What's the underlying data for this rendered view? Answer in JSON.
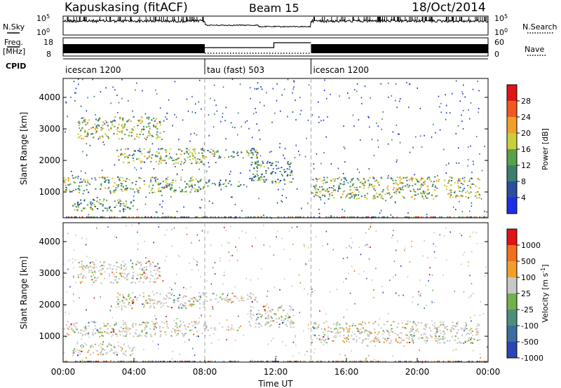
{
  "header": {
    "title": "Kapuskasing (fitACF)",
    "beam": "Beam 15",
    "date": "18/Oct/2014"
  },
  "summary_panels": {
    "nsky": {
      "label": "N.Sky",
      "tick_top": "10^5",
      "tick_bottom": "10^0"
    },
    "nsearch": {
      "label": "N.Search",
      "tick_top": "10^5",
      "tick_bottom": "10^0"
    },
    "freq": {
      "label_top": "Freq.",
      "label_bottom": "[MHz]",
      "tick_top": "18",
      "tick_bottom": "8"
    },
    "nave": {
      "label": "Nave",
      "tick_top": "60",
      "tick_bottom": "0"
    },
    "cpid": {
      "label": "CPID",
      "modes": [
        {
          "name": "icescan 1200",
          "start_h": 0,
          "end_h": 8
        },
        {
          "name": "tau (fast) 503",
          "start_h": 8,
          "end_h": 14
        },
        {
          "name": "icescan 1200",
          "start_h": 14,
          "end_h": 24
        }
      ]
    }
  },
  "chart_data": [
    {
      "type": "heatmap",
      "name": "Power",
      "ylabel": "Slant Range [km]",
      "xlabel": "",
      "xlim": [
        0,
        24
      ],
      "ylim": [
        180,
        4600
      ],
      "yticks": [
        "1000",
        "2000",
        "3000",
        "4000"
      ],
      "colorbar": {
        "label": "Power [dB]",
        "ticks": [
          "4",
          "8",
          "12",
          "16",
          "20",
          "24",
          "28"
        ],
        "colors": [
          "#1e2ee6",
          "#2a4fa0",
          "#3b7e6e",
          "#5aa04a",
          "#c8cf3a",
          "#f0a12a",
          "#f05a1e",
          "#e01414"
        ]
      },
      "scatter_regions": [
        {
          "t0": 0.0,
          "t1": 8.0,
          "r0": 1000,
          "r1": 1500,
          "level": 0.45
        },
        {
          "t0": 0.8,
          "t1": 5.5,
          "r0": 2700,
          "r1": 3400,
          "level": 0.5
        },
        {
          "t0": 3.0,
          "t1": 8.0,
          "r0": 1900,
          "r1": 2400,
          "level": 0.45
        },
        {
          "t0": 8.0,
          "t1": 11.0,
          "r0": 2100,
          "r1": 2400,
          "level": 0.4
        },
        {
          "t0": 8.0,
          "t1": 10.0,
          "r0": 1200,
          "r1": 1400,
          "level": 0.35
        },
        {
          "t0": 10.5,
          "t1": 13.0,
          "r0": 1300,
          "r1": 2000,
          "level": 0.35
        },
        {
          "t0": 14.0,
          "t1": 23.5,
          "r0": 800,
          "r1": 1500,
          "level": 0.5
        },
        {
          "t0": 0.5,
          "t1": 4.0,
          "r0": 400,
          "r1": 800,
          "level": 0.4
        }
      ]
    },
    {
      "type": "heatmap",
      "name": "Velocity",
      "ylabel": "Slant Range [km]",
      "xlabel": "Time UT",
      "xlim": [
        0,
        24
      ],
      "ylim": [
        180,
        4600
      ],
      "xticks": [
        "00:00",
        "04:00",
        "08:00",
        "12:00",
        "16:00",
        "20:00",
        "00:00"
      ],
      "yticks": [
        "1000",
        "2000",
        "3000",
        "4000"
      ],
      "colorbar": {
        "label": "Velocity [m s^-1]",
        "ticks": [
          "1000",
          "500",
          "100",
          "25",
          "-25",
          "-100",
          "-500",
          "-1000"
        ],
        "colors": [
          "#2a46b4",
          "#3b6ea0",
          "#4f8e7a",
          "#6fb14a",
          "#c8c8c8",
          "#f0a12a",
          "#f07020",
          "#e01414"
        ]
      },
      "scatter_regions": [
        {
          "t0": 0.0,
          "t1": 8.0,
          "r0": 1000,
          "r1": 1500,
          "level": 0.45
        },
        {
          "t0": 0.8,
          "t1": 5.5,
          "r0": 2700,
          "r1": 3400,
          "level": 0.5
        },
        {
          "t0": 3.0,
          "t1": 8.0,
          "r0": 1900,
          "r1": 2400,
          "level": 0.45
        },
        {
          "t0": 8.0,
          "t1": 11.0,
          "r0": 2100,
          "r1": 2400,
          "level": 0.4
        },
        {
          "t0": 8.0,
          "t1": 10.0,
          "r0": 1200,
          "r1": 1400,
          "level": 0.35
        },
        {
          "t0": 10.5,
          "t1": 13.0,
          "r0": 1300,
          "r1": 2000,
          "level": 0.35
        },
        {
          "t0": 14.0,
          "t1": 23.5,
          "r0": 800,
          "r1": 1500,
          "level": 0.5
        },
        {
          "t0": 0.5,
          "t1": 4.0,
          "r0": 400,
          "r1": 800,
          "level": 0.4
        }
      ]
    }
  ]
}
